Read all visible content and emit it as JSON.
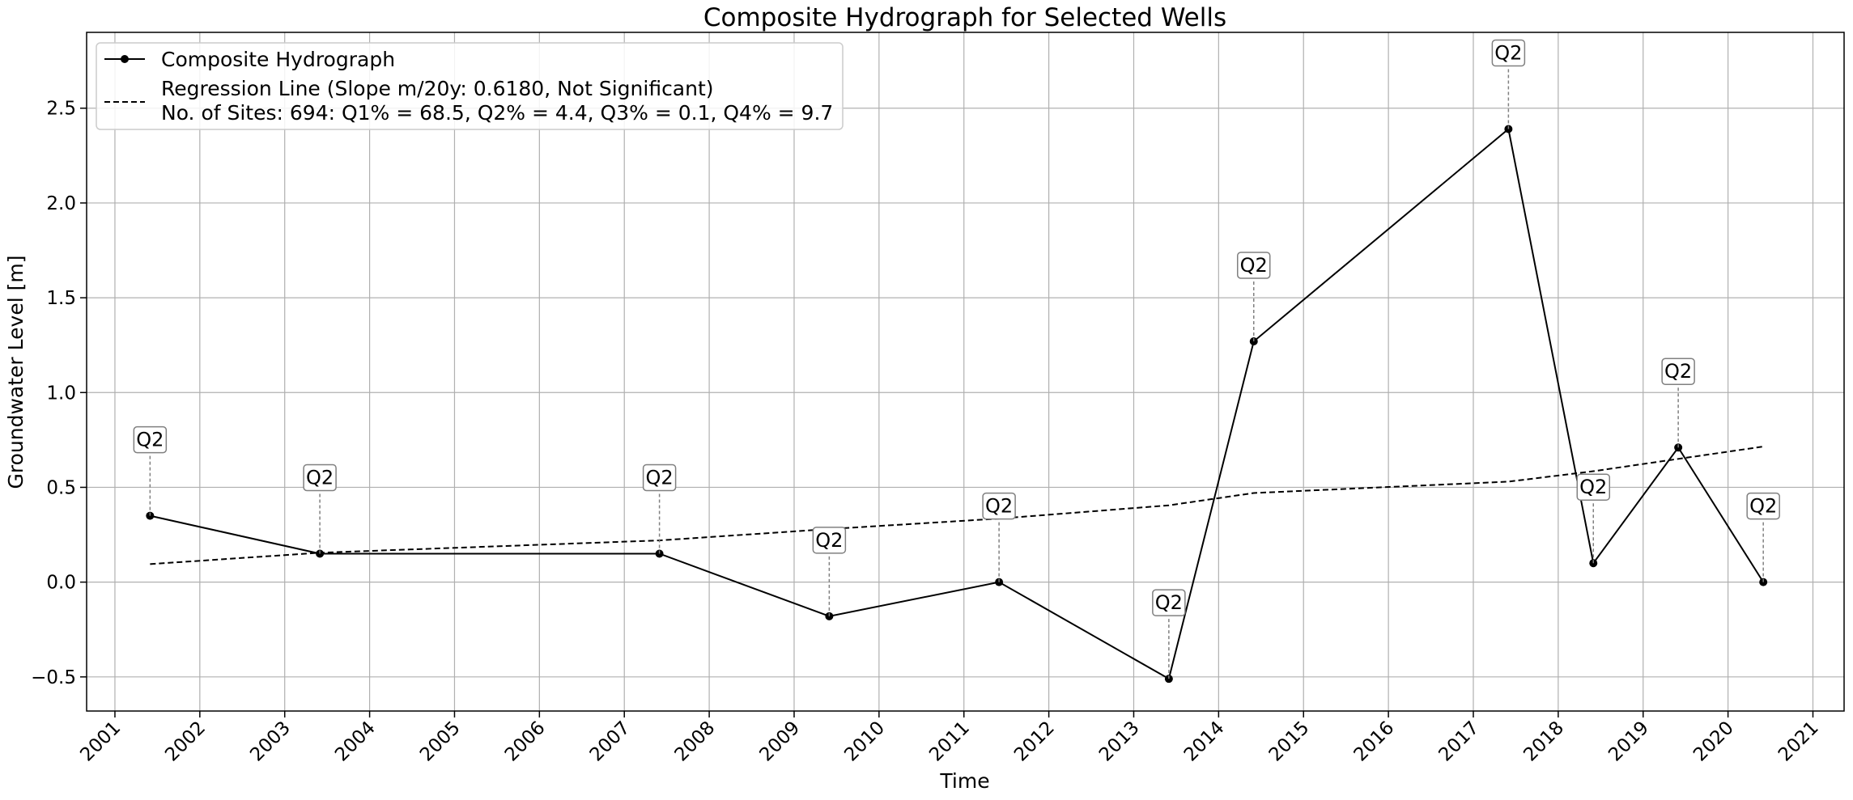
{
  "chart_data": {
    "type": "line",
    "title": "Composite Hydrograph for Selected Wells",
    "xlabel": "Time",
    "ylabel": "Groundwater Level [m]",
    "xlim": [
      "2000-09-01",
      "2021-05-15"
    ],
    "ylim": [
      -0.68,
      2.9
    ],
    "grid": true,
    "legend_position": "top-left",
    "x_ticks": [
      "2001",
      "2002",
      "2003",
      "2004",
      "2005",
      "2006",
      "2007",
      "2008",
      "2009",
      "2010",
      "2011",
      "2012",
      "2013",
      "2014",
      "2015",
      "2016",
      "2017",
      "2018",
      "2019",
      "2020",
      "2021"
    ],
    "y_ticks": [
      {
        "value": -0.5,
        "label": "−0.5"
      },
      {
        "value": 0.0,
        "label": "0.0"
      },
      {
        "value": 0.5,
        "label": "0.5"
      },
      {
        "value": 1.0,
        "label": "1.0"
      },
      {
        "value": 1.5,
        "label": "1.5"
      },
      {
        "value": 2.0,
        "label": "2.0"
      },
      {
        "value": 2.5,
        "label": "2.5"
      }
    ],
    "series": [
      {
        "name": "Composite Hydrograph",
        "style": "solid-with-markers",
        "color": "#000000",
        "points": [
          {
            "x": "2001-06-01",
            "y": 0.35,
            "annotation": "Q2"
          },
          {
            "x": "2003-06-01",
            "y": 0.15,
            "annotation": "Q2"
          },
          {
            "x": "2007-06-01",
            "y": 0.15,
            "annotation": "Q2"
          },
          {
            "x": "2009-06-01",
            "y": -0.18,
            "annotation": "Q2"
          },
          {
            "x": "2011-06-01",
            "y": 0.0,
            "annotation": "Q2"
          },
          {
            "x": "2013-06-01",
            "y": -0.51,
            "annotation": "Q2"
          },
          {
            "x": "2014-06-01",
            "y": 1.27,
            "annotation": "Q2"
          },
          {
            "x": "2017-06-01",
            "y": 2.39,
            "annotation": "Q2"
          },
          {
            "x": "2018-06-01",
            "y": 0.1,
            "annotation": "Q2"
          },
          {
            "x": "2019-06-01",
            "y": 0.71,
            "annotation": "Q2"
          },
          {
            "x": "2020-06-01",
            "y": 0.0,
            "annotation": "Q2"
          }
        ]
      },
      {
        "name": "Regression Line (Slope m/20y: 0.6180, Not Significant)",
        "style": "dashed",
        "color": "#000000",
        "points": [
          {
            "x": "2001-06-01",
            "y": 0.095
          },
          {
            "x": "2003-06-01",
            "y": 0.155
          },
          {
            "x": "2007-06-01",
            "y": 0.22
          },
          {
            "x": "2009-06-01",
            "y": 0.28
          },
          {
            "x": "2011-06-01",
            "y": 0.335
          },
          {
            "x": "2013-06-01",
            "y": 0.405
          },
          {
            "x": "2014-06-01",
            "y": 0.47
          },
          {
            "x": "2017-06-01",
            "y": 0.53
          },
          {
            "x": "2018-06-01",
            "y": 0.585
          },
          {
            "x": "2019-06-01",
            "y": 0.65
          },
          {
            "x": "2020-06-01",
            "y": 0.715
          }
        ]
      }
    ],
    "legend": {
      "entries": [
        {
          "label": "Composite Hydrograph",
          "style": "solid-with-markers"
        },
        {
          "label": "Regression Line (Slope m/20y: 0.6180, Not Significant)",
          "style": "dashed"
        }
      ],
      "extra_line": "No. of Sites: 694: Q1% = 68.5, Q2% = 4.4, Q3% = 0.1, Q4% = 9.7"
    },
    "annotation_connector_color": "#808080",
    "annotation_box_border": "#808080"
  }
}
